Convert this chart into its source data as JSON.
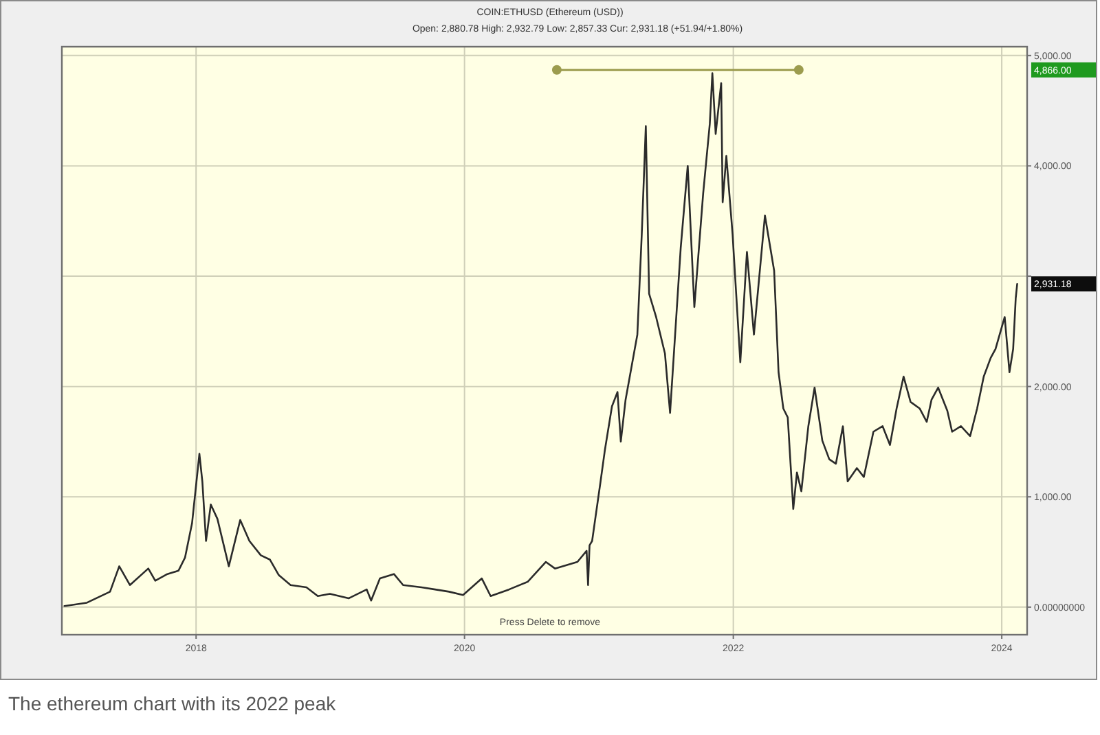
{
  "chart_data": {
    "type": "line",
    "title": "COIN:ETHUSD (Ethereum (USD))",
    "subtitle": "Open: 2,880.78 High: 2,932.79 Low: 2,857.33 Cur: 2,931.18 (+51.94/+1.80%)",
    "xlim": [
      "2017-01-01",
      "2024-03-10"
    ],
    "xticks": [
      "2018",
      "2020",
      "2022",
      "2024"
    ],
    "ylim": [
      -250,
      5080
    ],
    "yticks": [
      {
        "value": 0,
        "label": "0.00000000"
      },
      {
        "value": 1000,
        "label": "1,000.00"
      },
      {
        "value": 2000,
        "label": "2,000.00"
      },
      {
        "value": 3000,
        "label": null
      },
      {
        "value": 4000,
        "label": "4,000.00"
      },
      {
        "value": 5000,
        "label": "5,000.00"
      }
    ],
    "grid": true,
    "series": [
      {
        "color": "#2b2b2b",
        "x": [
          "2017-01-08",
          "2017-03-10",
          "2017-05-12",
          "2017-06-06",
          "2017-07-05",
          "2017-08-24",
          "2017-09-12",
          "2017-10-15",
          "2017-11-14",
          "2017-12-02",
          "2017-12-21",
          "2018-01-10",
          "2018-01-18",
          "2018-01-28",
          "2018-02-10",
          "2018-02-28",
          "2018-03-31",
          "2018-05-01",
          "2018-05-26",
          "2018-06-26",
          "2018-07-21",
          "2018-08-14",
          "2018-09-15",
          "2018-10-28",
          "2018-11-28",
          "2018-12-31",
          "2019-02-20",
          "2019-04-10",
          "2019-04-22",
          "2019-05-16",
          "2019-06-23",
          "2019-07-18",
          "2019-09-06",
          "2019-10-13",
          "2019-11-20",
          "2019-12-28",
          "2020-02-17",
          "2020-03-12",
          "2020-05-01",
          "2020-06-21",
          "2020-08-09",
          "2020-09-03",
          "2020-11-03",
          "2020-11-28",
          "2020-12-02",
          "2020-12-06",
          "2020-12-13",
          "2021-01-05",
          "2021-01-17",
          "2021-02-05",
          "2021-02-20",
          "2021-03-01",
          "2021-03-14",
          "2021-04-15",
          "2021-04-27",
          "2021-05-08",
          "2021-05-17",
          "2021-06-05",
          "2021-06-29",
          "2021-07-13",
          "2021-08-11",
          "2021-08-30",
          "2021-09-17",
          "2021-10-11",
          "2021-10-29",
          "2021-11-05",
          "2021-11-14",
          "2021-11-29",
          "2021-12-03",
          "2021-12-13",
          "2021-12-30",
          "2022-01-20",
          "2022-02-07",
          "2022-02-26",
          "2022-03-28",
          "2022-04-22",
          "2022-05-04",
          "2022-05-17",
          "2022-05-29",
          "2022-06-13",
          "2022-06-23",
          "2022-07-05",
          "2022-07-24",
          "2022-08-10",
          "2022-08-31",
          "2022-09-19",
          "2022-10-07",
          "2022-10-26",
          "2022-11-08",
          "2022-12-03",
          "2022-12-22",
          "2023-01-17",
          "2023-02-11",
          "2023-03-03",
          "2023-03-21",
          "2023-04-09",
          "2023-04-28",
          "2023-05-23",
          "2023-06-11",
          "2023-06-24",
          "2023-07-12",
          "2023-08-06",
          "2023-08-19",
          "2023-09-12",
          "2023-10-07",
          "2023-10-26",
          "2023-11-13",
          "2023-12-02",
          "2023-12-15",
          "2024-01-09",
          "2024-01-22",
          "2024-02-01",
          "2024-02-08",
          "2024-02-12"
        ],
        "values": [
          10,
          40,
          140,
          370,
          200,
          350,
          240,
          300,
          330,
          450,
          760,
          1390,
          1140,
          600,
          930,
          800,
          370,
          790,
          600,
          470,
          430,
          290,
          200,
          180,
          100,
          120,
          80,
          160,
          60,
          260,
          300,
          200,
          180,
          160,
          140,
          110,
          260,
          100,
          160,
          230,
          410,
          350,
          410,
          510,
          200,
          560,
          600,
          1140,
          1430,
          1820,
          1950,
          1500,
          1880,
          2470,
          3380,
          4360,
          2840,
          2630,
          2300,
          1760,
          3260,
          4000,
          2720,
          3750,
          4380,
          4840,
          4290,
          4750,
          3670,
          4090,
          3380,
          2220,
          3220,
          2470,
          3550,
          3050,
          2130,
          1800,
          1720,
          890,
          1220,
          1050,
          1640,
          1990,
          1510,
          1340,
          1300,
          1640,
          1140,
          1260,
          1180,
          1590,
          1640,
          1470,
          1800,
          2090,
          1860,
          1800,
          1680,
          1880,
          1990,
          1780,
          1590,
          1640,
          1550,
          1800,
          2090,
          2260,
          2340,
          2630,
          2130,
          2340,
          2800,
          2930
        ]
      },
      {
        "type": "line",
        "color": "#9c9c4e",
        "marker": "circle",
        "x": [
          "2020-09-08",
          "2022-06-28"
        ],
        "values": [
          4870,
          4870
        ]
      }
    ],
    "annotations": [
      "2,931.18",
      "4,866.00",
      "Press Delete to remove",
      "The ethereum chart with its 2022 peak"
    ]
  }
}
